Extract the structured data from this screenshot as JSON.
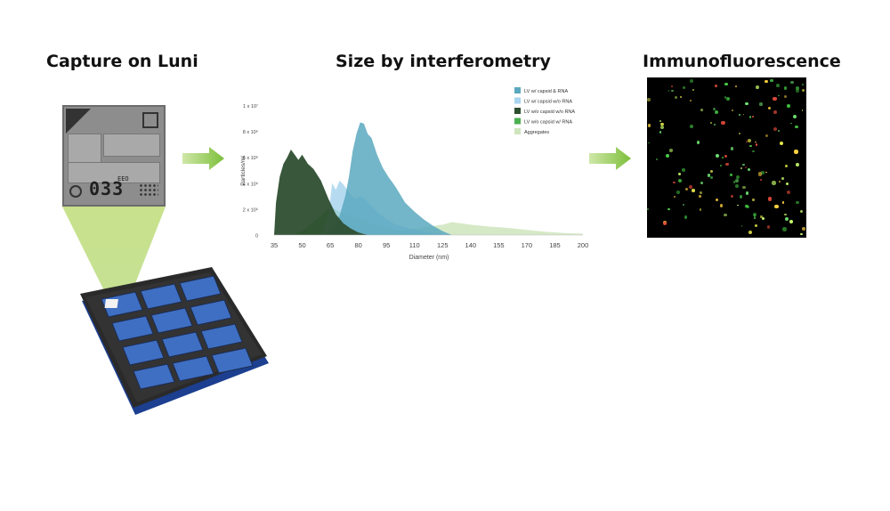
{
  "headings": {
    "capture": "Capture on Luni",
    "size": "Size by interferometry",
    "immuno": "Immunofluorescence"
  },
  "chip": {
    "digits": "033",
    "code": "EEO"
  },
  "colors": {
    "arrow": "#9ccc5a",
    "beam": "#b9dd7d",
    "plate_body": "#2a2a2a",
    "plate_wells": "#3f6fc2",
    "plate_base": "#1c3f8f"
  },
  "chart_data": {
    "type": "area",
    "title": "",
    "xlabel": "Diameter (nm)",
    "ylabel": "Particles/ml",
    "xlim": [
      35,
      200
    ],
    "ylim": [
      0,
      11000000
    ],
    "xticks": [
      "35",
      "50",
      "65",
      "80",
      "95",
      "110",
      "125",
      "140",
      "155",
      "170",
      "185",
      "200"
    ],
    "yticks": [
      {
        "value": 0,
        "label": "0"
      },
      {
        "value": 2000000,
        "label": "2 x 10⁶"
      },
      {
        "value": 4000000,
        "label": "4 x 10⁶"
      },
      {
        "value": 6000000,
        "label": "6 x 10⁶"
      },
      {
        "value": 8000000,
        "label": "8 x 10⁶"
      },
      {
        "value": 10000000,
        "label": "1 x 10⁷"
      }
    ],
    "legend_position": "top-right",
    "series": [
      {
        "name": "Aggregates",
        "color": "#cfe5bd",
        "points": [
          [
            95,
            0
          ],
          [
            100,
            200000
          ],
          [
            110,
            500000
          ],
          [
            120,
            700000
          ],
          [
            125,
            800000
          ],
          [
            130,
            1000000
          ],
          [
            135,
            900000
          ],
          [
            140,
            800000
          ],
          [
            150,
            650000
          ],
          [
            160,
            550000
          ],
          [
            170,
            400000
          ],
          [
            180,
            250000
          ],
          [
            190,
            150000
          ],
          [
            200,
            100000
          ]
        ]
      },
      {
        "name": "LV w/o capsid w/ RNA",
        "color": "#4caf50",
        "points": [
          [
            45,
            0
          ],
          [
            50,
            300000
          ],
          [
            55,
            900000
          ],
          [
            60,
            1500000
          ],
          [
            64,
            2000000
          ],
          [
            66,
            2100000
          ],
          [
            70,
            1800000
          ],
          [
            75,
            1500000
          ],
          [
            80,
            1300000
          ],
          [
            85,
            1000000
          ],
          [
            90,
            700000
          ],
          [
            100,
            400000
          ],
          [
            110,
            200000
          ],
          [
            120,
            100000
          ],
          [
            128,
            0
          ]
        ]
      },
      {
        "name": "LV w/ capsid w/o RNA",
        "color": "#a9d5ee",
        "points": [
          [
            60,
            0
          ],
          [
            64,
            1500000
          ],
          [
            66,
            4000000
          ],
          [
            68,
            3500000
          ],
          [
            70,
            4200000
          ],
          [
            72,
            3900000
          ],
          [
            75,
            3300000
          ],
          [
            78,
            2800000
          ],
          [
            82,
            3000000
          ],
          [
            86,
            2400000
          ],
          [
            90,
            1800000
          ],
          [
            95,
            1200000
          ],
          [
            100,
            800000
          ],
          [
            110,
            400000
          ],
          [
            120,
            150000
          ],
          [
            128,
            0
          ]
        ]
      },
      {
        "name": "LV w/ capsid & RNA",
        "color": "#5ba8bf",
        "points": [
          [
            62,
            0
          ],
          [
            66,
            500000
          ],
          [
            70,
            1500000
          ],
          [
            73,
            3000000
          ],
          [
            75,
            4500000
          ],
          [
            77,
            6500000
          ],
          [
            79,
            7800000
          ],
          [
            81,
            8700000
          ],
          [
            83,
            8600000
          ],
          [
            85,
            7800000
          ],
          [
            87,
            7500000
          ],
          [
            90,
            6200000
          ],
          [
            93,
            5200000
          ],
          [
            96,
            4500000
          ],
          [
            100,
            3700000
          ],
          [
            105,
            2500000
          ],
          [
            110,
            1800000
          ],
          [
            115,
            1200000
          ],
          [
            120,
            700000
          ],
          [
            125,
            300000
          ],
          [
            130,
            0
          ]
        ]
      },
      {
        "name": "LV w/o capsid w/o RNA",
        "color": "#2e4e30",
        "points": [
          [
            35,
            0
          ],
          [
            36,
            2500000
          ],
          [
            38,
            4500000
          ],
          [
            40,
            5500000
          ],
          [
            42,
            6000000
          ],
          [
            44,
            6600000
          ],
          [
            46,
            6200000
          ],
          [
            48,
            5800000
          ],
          [
            50,
            6200000
          ],
          [
            53,
            5500000
          ],
          [
            56,
            5100000
          ],
          [
            60,
            4200000
          ],
          [
            64,
            2800000
          ],
          [
            68,
            1600000
          ],
          [
            72,
            900000
          ],
          [
            76,
            500000
          ],
          [
            80,
            200000
          ],
          [
            85,
            0
          ]
        ]
      }
    ],
    "legend": [
      {
        "name": "LV w/ capsid & RNA",
        "color": "#5ba8bf"
      },
      {
        "name": "LV w/ capsid w/o RNA",
        "color": "#a9d5ee"
      },
      {
        "name": "LV w/o capsid w/o RNA",
        "color": "#2e4e30"
      },
      {
        "name": "LV w/o capsid w/ RNA",
        "color": "#4caf50"
      },
      {
        "name": "Aggregates",
        "color": "#cfe5bd"
      }
    ]
  }
}
